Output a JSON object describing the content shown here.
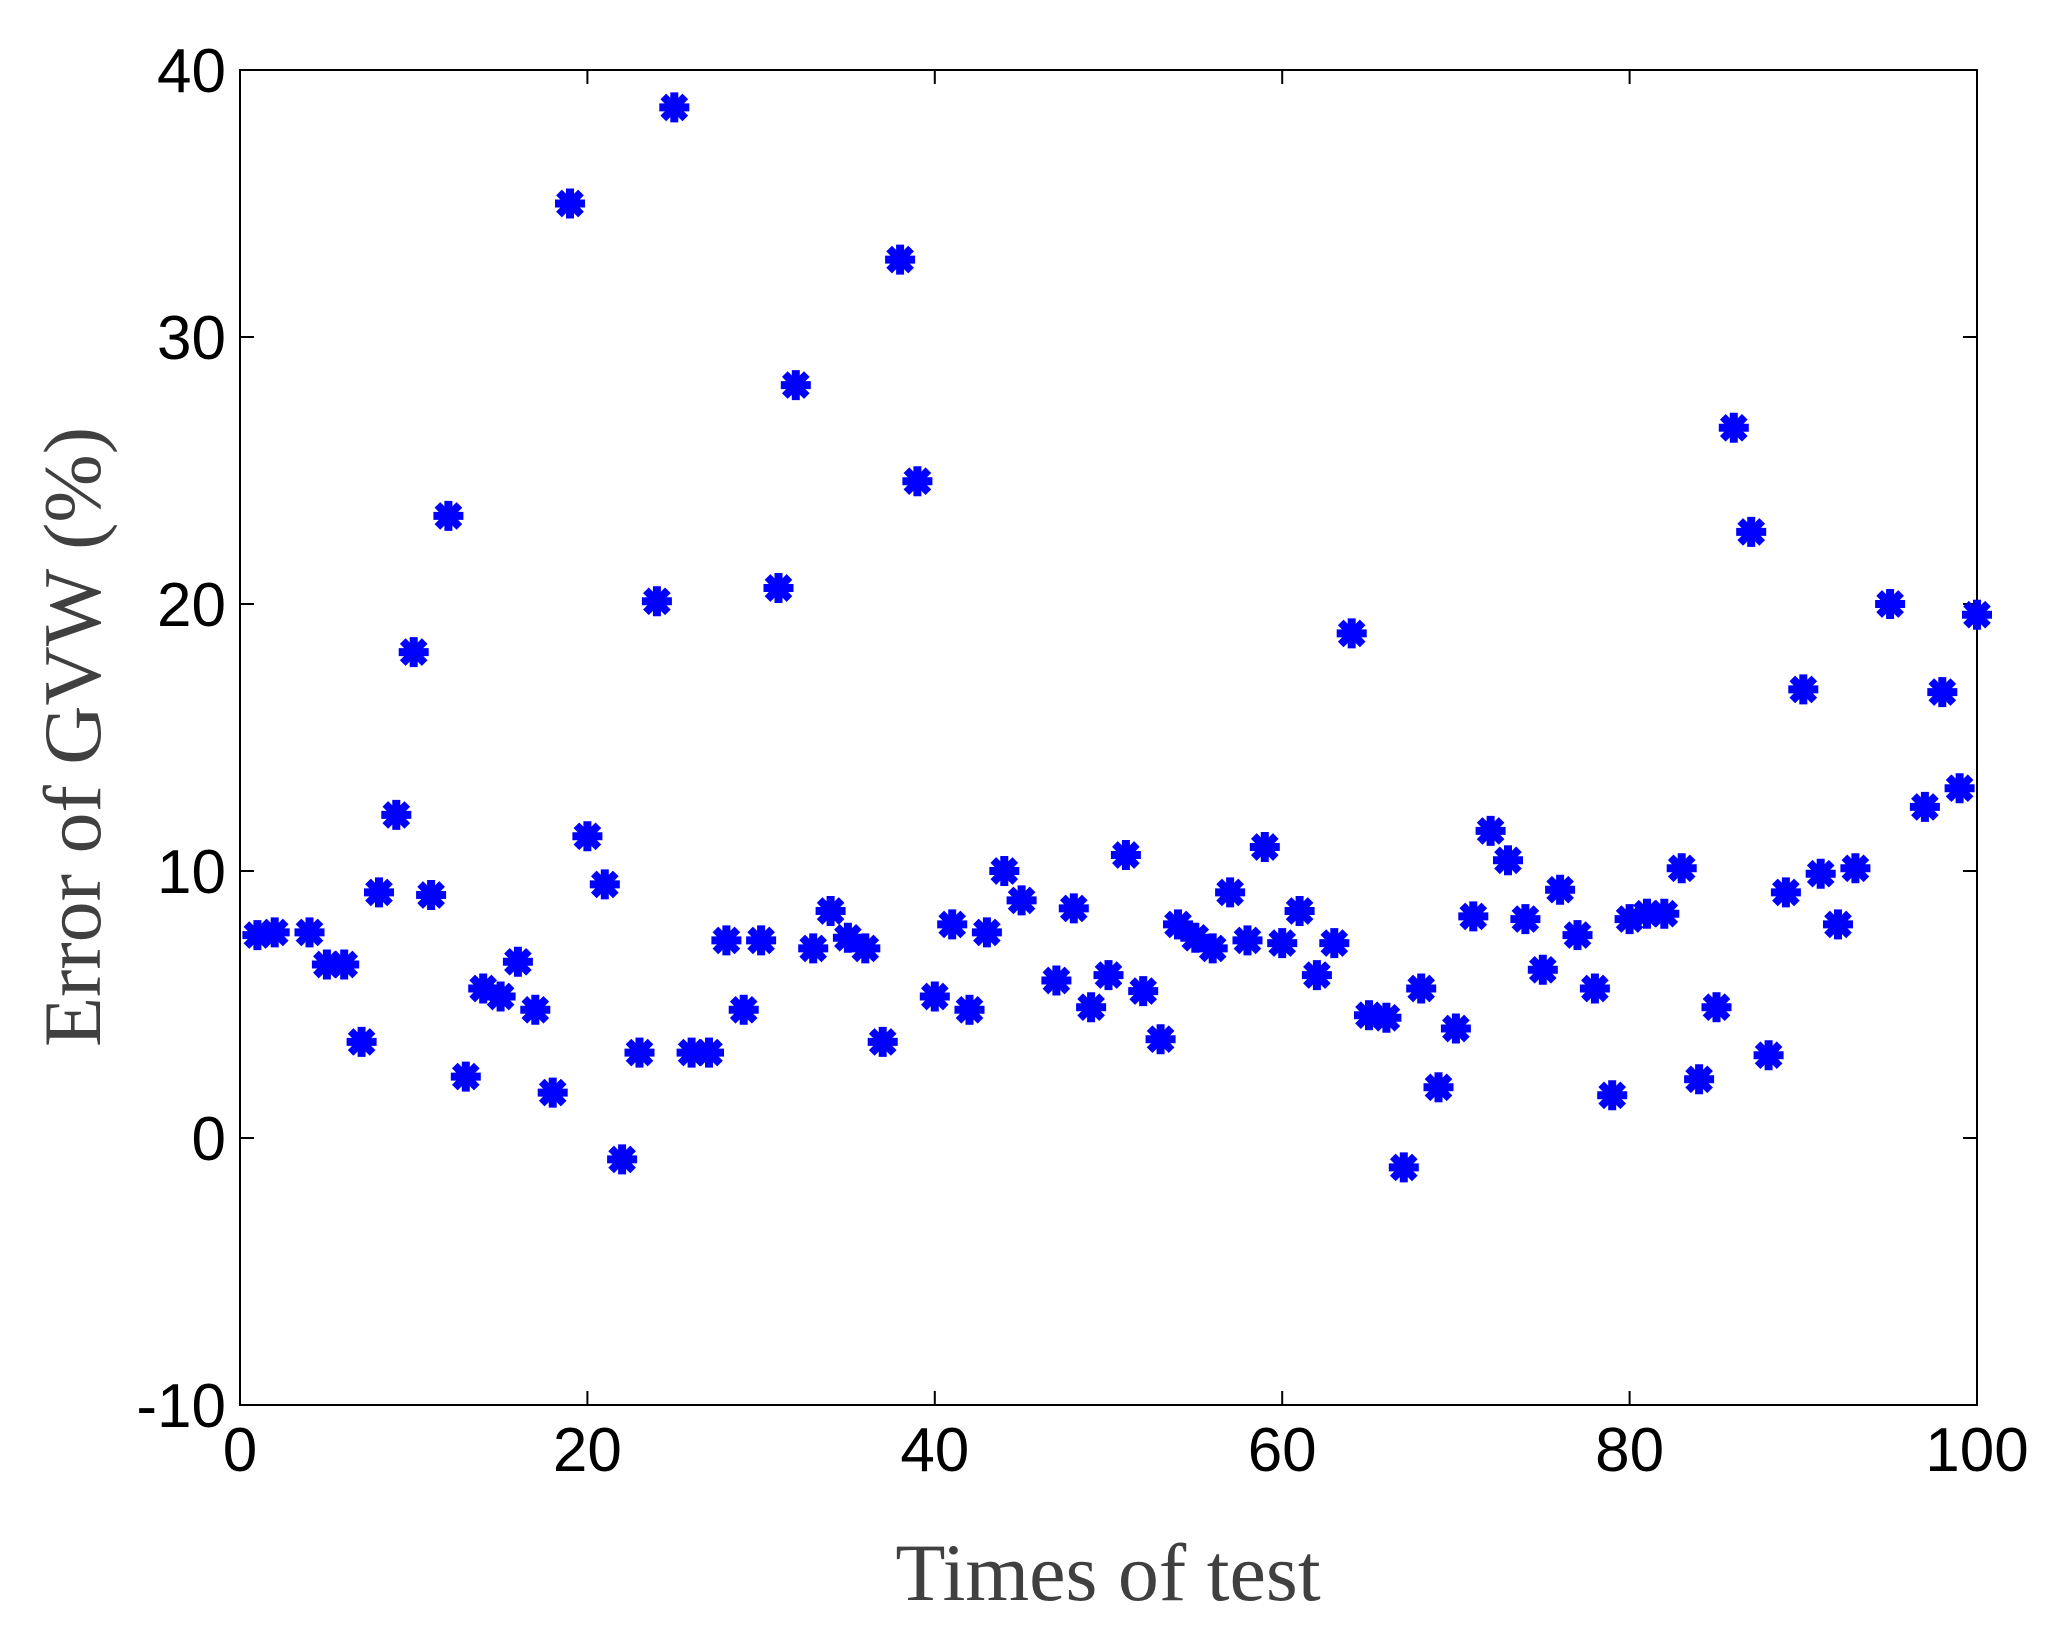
{
  "chart_data": {
    "type": "scatter",
    "title": "",
    "xlabel": "Times of test",
    "ylabel": "Error of GVW (%)",
    "xlim": [
      0,
      100
    ],
    "ylim": [
      -10,
      40
    ],
    "x_ticks": [
      "0",
      "20",
      "40",
      "60",
      "80",
      "100"
    ],
    "y_ticks": [
      "-10",
      "0",
      "10",
      "20",
      "30",
      "40"
    ],
    "grid": false,
    "legend": "none",
    "marker": "asterisk",
    "marker_color": "#0000ff",
    "series": [
      {
        "x": [
          1,
          2,
          4,
          5,
          6,
          7,
          8,
          9,
          10,
          11,
          12,
          13,
          14,
          15,
          16,
          17,
          18,
          19,
          20,
          21,
          22,
          23,
          24,
          25,
          26,
          27,
          28,
          29,
          30,
          31,
          32,
          33,
          34,
          35,
          36,
          37,
          38,
          39,
          40,
          41,
          42,
          43,
          44,
          45,
          47,
          48,
          49,
          50,
          51,
          52,
          53,
          54,
          55,
          56,
          57,
          58,
          59,
          60,
          61,
          62,
          63,
          64,
          65,
          66,
          67,
          68,
          69,
          70,
          71,
          72,
          73,
          74,
          75,
          76,
          77,
          78,
          79,
          80,
          81,
          82,
          83,
          84,
          85,
          86,
          87,
          88,
          89,
          90,
          91,
          92,
          93,
          95,
          97,
          98,
          99,
          100
        ],
        "y": [
          7.6,
          7.7,
          7.7,
          6.5,
          6.5,
          3.6,
          9.2,
          12.1,
          18.2,
          9.1,
          23.3,
          2.3,
          5.6,
          5.3,
          6.6,
          4.8,
          1.7,
          35.0,
          11.3,
          9.5,
          -0.8,
          3.2,
          20.1,
          38.6,
          3.2,
          3.2,
          7.4,
          4.8,
          7.4,
          20.6,
          28.2,
          7.1,
          8.5,
          7.5,
          7.1,
          3.6,
          32.9,
          24.6,
          5.3,
          8.0,
          4.8,
          7.7,
          10.0,
          8.9,
          5.9,
          8.6,
          4.9,
          6.1,
          10.6,
          5.5,
          3.7,
          8.0,
          7.5,
          7.1,
          9.2,
          7.4,
          10.9,
          7.3,
          8.5,
          6.1,
          7.3,
          18.9,
          4.6,
          4.5,
          -1.1,
          5.6,
          1.9,
          4.1,
          8.3,
          11.5,
          10.4,
          8.2,
          6.3,
          9.3,
          7.6,
          5.6,
          1.6,
          8.2,
          8.4,
          8.4,
          10.1,
          2.2,
          4.9,
          26.6,
          22.7,
          3.1,
          9.2,
          16.8,
          9.9,
          8.0,
          10.1,
          20.0,
          12.4,
          16.7,
          13.1,
          19.6
        ]
      }
    ]
  }
}
